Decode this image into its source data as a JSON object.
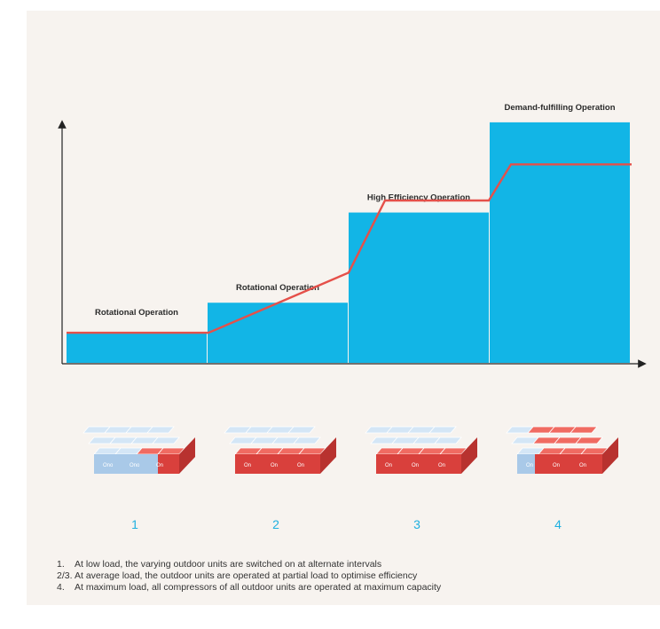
{
  "chart_data": {
    "type": "bar",
    "categories": [
      "1",
      "2",
      "3",
      "4"
    ],
    "bar_labels": [
      "Rotational Operation",
      "Rotational Operation",
      "High Efficiency Operation",
      "Demand-fulfilling Operation"
    ],
    "values": [
      1,
      2,
      5,
      8
    ],
    "line_values": [
      1,
      1,
      3,
      5.4,
      5.4,
      6.6,
      6.6
    ],
    "colors": {
      "bar": "#12b5e6",
      "line": "#e5504a",
      "axis": "#222222",
      "label": "#1fb0e0"
    },
    "xlabel": "",
    "ylabel": "",
    "ylim": [
      0,
      9
    ]
  },
  "units": [
    {
      "number": "1",
      "active_cells": 3,
      "labels": [
        "Ono",
        "Ono",
        "On"
      ]
    },
    {
      "number": "2",
      "active_cells": 12,
      "labels": [
        "On",
        "On",
        "On"
      ]
    },
    {
      "number": "3",
      "active_cells": 12,
      "labels": [
        "On",
        "On",
        "On"
      ]
    },
    {
      "number": "4",
      "active_cells": 12,
      "labels": [
        "On",
        "On",
        "On"
      ]
    }
  ],
  "notes": [
    {
      "num": "1.",
      "text": "At low load, the varying outdoor units are switched on at alternate intervals"
    },
    {
      "num": "2/3.",
      "text": "At average load, the outdoor units are operated at partial load to optimise efficiency"
    },
    {
      "num": "4.",
      "text": "At maximum load, all compressors of all outdoor units are operated at maximum capacity"
    }
  ]
}
